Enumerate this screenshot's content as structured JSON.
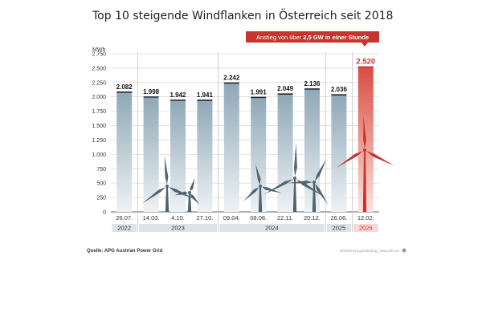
{
  "chart_data": {
    "type": "bar",
    "title": "Top 10 steigende Windflanken in Österreich seit 2018",
    "ylabel": "MWh",
    "ylim": [
      0,
      2750
    ],
    "yticks": [
      0,
      250,
      500,
      750,
      1000,
      1250,
      1500,
      1750,
      2000,
      2250,
      2500,
      2750
    ],
    "ytick_labels": [
      "0",
      "250",
      "500",
      "750",
      "1.000",
      "1.250",
      "1.500",
      "1.750",
      "2.000",
      "2.250",
      "2.500",
      "2.750"
    ],
    "categories": [
      "26.07.",
      "14.03.",
      "4.10.",
      "27.10.",
      "09.04.",
      "08.08.",
      "22.11.",
      "20.12.",
      "26.06.",
      "12.02."
    ],
    "values": [
      2082,
      1998,
      1942,
      1941,
      2242,
      1991,
      2049,
      2136,
      2036,
      2520
    ],
    "value_labels": [
      "2.082",
      "1.998",
      "1.942",
      "1.941",
      "2.242",
      "1.991",
      "2.049",
      "2.136",
      "2.036",
      "2.520"
    ],
    "year_groups": [
      {
        "label": "2022",
        "start": 0,
        "end": 0
      },
      {
        "label": "2023",
        "start": 1,
        "end": 3
      },
      {
        "label": "2024",
        "start": 4,
        "end": 7
      },
      {
        "label": "2025",
        "start": 8,
        "end": 8
      },
      {
        "label": "2026",
        "start": 9,
        "end": 9
      }
    ],
    "highlight_index": 9,
    "callout_prefix": "Anstieg von über ",
    "callout_bold": "2,5 GW in einer Stunde",
    "source": "Quelle: APG Austrian Power Grid",
    "credit": "infoelement.gesoft.blog | www.info.at"
  },
  "colors": {
    "bar_top": "#8fa8b6",
    "bar_bottom": "#eef2f5",
    "highlight_top": "#d94d42",
    "highlight_bottom": "#fbe3df",
    "highlight_line": "#c8352f",
    "turbine": "#4f6470",
    "grid": "#cfcfcf",
    "band": "#dde3e8",
    "band_hi": "#f6d9d6"
  }
}
